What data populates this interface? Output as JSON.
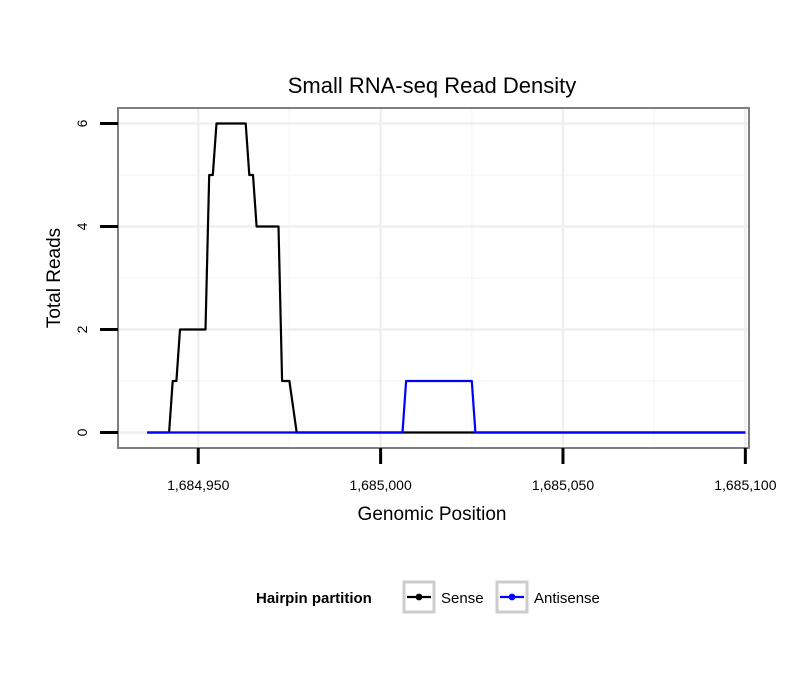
{
  "chart_data": {
    "type": "line",
    "title": "Small RNA-seq Read Density",
    "xlabel": "Genomic Position",
    "ylabel": "Total Reads",
    "xlim": [
      1684928,
      1685101
    ],
    "ylim": [
      -0.3,
      6.3
    ],
    "x_ticks": [
      1684950,
      1685000,
      1685050,
      1685100
    ],
    "x_tick_labels": [
      "1,684,950",
      "1,685,000",
      "1,685,050",
      "1,685,100"
    ],
    "y_ticks": [
      0,
      2,
      4,
      6
    ],
    "y_tick_labels": [
      "0",
      "2",
      "4",
      "6"
    ],
    "grid": true,
    "legend": {
      "title": "Hairpin partition",
      "position": "bottom",
      "entries": [
        {
          "name": "Sense",
          "color": "#000000"
        },
        {
          "name": "Antisense",
          "color": "#0000ff"
        }
      ]
    },
    "series": [
      {
        "name": "Sense",
        "color": "#000000",
        "x": [
          1684936,
          1684942,
          1684943,
          1684944,
          1684945,
          1684947,
          1684949,
          1684950,
          1684952,
          1684953,
          1684954,
          1684955,
          1684956,
          1684957,
          1684958,
          1684959,
          1684960,
          1684961,
          1684962,
          1684963,
          1684964,
          1684965,
          1684966,
          1684967,
          1684968,
          1684969,
          1684970,
          1684971,
          1684972,
          1684973,
          1684974,
          1684975,
          1684977,
          1685100
        ],
        "y": [
          0,
          0,
          1,
          1,
          2,
          2,
          2,
          2,
          2,
          5,
          5,
          6,
          6,
          6,
          6,
          6,
          6,
          6,
          6,
          6,
          5,
          5,
          4,
          4,
          4,
          4,
          4,
          4,
          4,
          1,
          1,
          1,
          0,
          0
        ]
      },
      {
        "name": "Antisense",
        "color": "#0000ff",
        "x": [
          1684936,
          1685000,
          1685006,
          1685007,
          1685025,
          1685026,
          1685100
        ],
        "y": [
          0,
          0,
          0,
          1,
          1,
          0,
          0
        ]
      }
    ]
  }
}
